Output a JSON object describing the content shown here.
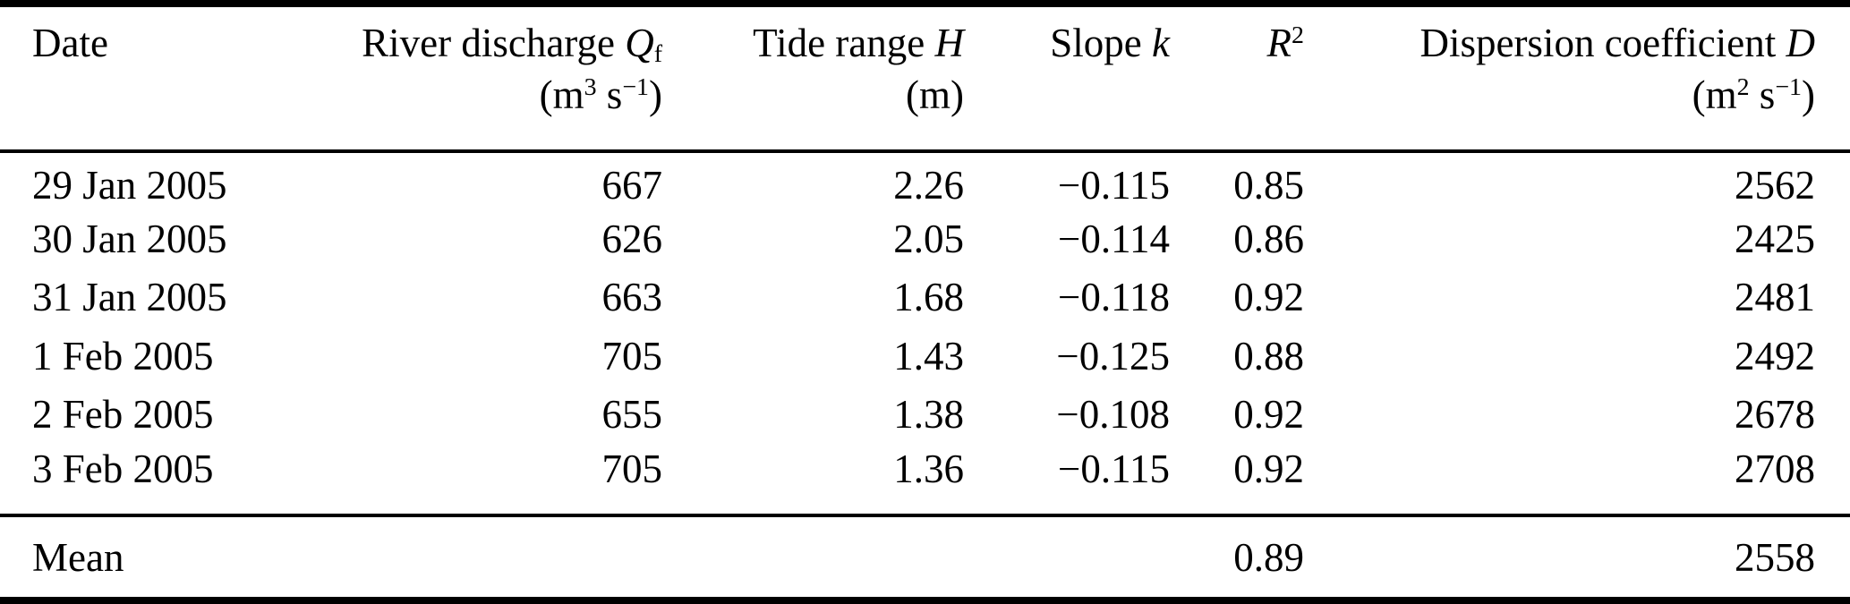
{
  "colors": {
    "text": "#000000",
    "background": "#ffffff",
    "rule": "#000000"
  },
  "table": {
    "columns": [
      {
        "id": "date",
        "align": "left",
        "label_runs": [
          {
            "t": "Date"
          }
        ],
        "unit_runs": []
      },
      {
        "id": "river_discharge",
        "align": "right",
        "label_runs": [
          {
            "t": "River discharge "
          },
          {
            "t": "Q",
            "s": "i"
          },
          {
            "t": "f",
            "s": "sub"
          }
        ],
        "unit_runs": [
          {
            "t": "(m"
          },
          {
            "t": "3",
            "s": "sup"
          },
          {
            "t": " s"
          },
          {
            "t": "−1",
            "s": "sup"
          },
          {
            "t": ")"
          }
        ]
      },
      {
        "id": "tide_range",
        "align": "right",
        "label_runs": [
          {
            "t": "Tide range "
          },
          {
            "t": "H",
            "s": "i"
          }
        ],
        "unit_runs": [
          {
            "t": "(m)"
          }
        ]
      },
      {
        "id": "slope",
        "align": "right",
        "label_runs": [
          {
            "t": "Slope "
          },
          {
            "t": "k",
            "s": "i"
          }
        ],
        "unit_runs": []
      },
      {
        "id": "r_squared",
        "align": "right",
        "label_runs": [
          {
            "t": "R",
            "s": "i"
          },
          {
            "t": "2",
            "s": "sup"
          }
        ],
        "unit_runs": []
      },
      {
        "id": "dispersion",
        "align": "right",
        "label_runs": [
          {
            "t": "Dispersion coefficient "
          },
          {
            "t": "D",
            "s": "i"
          }
        ],
        "unit_runs": [
          {
            "t": "(m"
          },
          {
            "t": "2",
            "s": "sup"
          },
          {
            "t": " s"
          },
          {
            "t": "−1",
            "s": "sup"
          },
          {
            "t": ")"
          }
        ]
      }
    ],
    "rows": [
      {
        "date": "29 Jan 2005",
        "river_discharge": "667",
        "tide_range": "2.26",
        "slope": "−0.115",
        "r_squared": "0.85",
        "dispersion": "2562"
      },
      {
        "date": "30 Jan 2005",
        "river_discharge": "626",
        "tide_range": "2.05",
        "slope": "−0.114",
        "r_squared": "0.86",
        "dispersion": "2425"
      },
      {
        "date": "31 Jan 2005",
        "river_discharge": "663",
        "tide_range": "1.68",
        "slope": "−0.118",
        "r_squared": "0.92",
        "dispersion": "2481"
      },
      {
        "date": "1 Feb 2005",
        "river_discharge": "705",
        "tide_range": "1.43",
        "slope": "−0.125",
        "r_squared": "0.88",
        "dispersion": "2492"
      },
      {
        "date": "2 Feb 2005",
        "river_discharge": "655",
        "tide_range": "1.38",
        "slope": "−0.108",
        "r_squared": "0.92",
        "dispersion": "2678"
      },
      {
        "date": "3 Feb 2005",
        "river_discharge": "705",
        "tide_range": "1.36",
        "slope": "−0.115",
        "r_squared": "0.92",
        "dispersion": "2708"
      }
    ],
    "summary_row": {
      "date": "Mean",
      "river_discharge": "",
      "tide_range": "",
      "slope": "",
      "r_squared": "0.89",
      "dispersion": "2558"
    }
  },
  "chart_data": {
    "type": "table",
    "title": "",
    "categories": [
      "29 Jan 2005",
      "30 Jan 2005",
      "31 Jan 2005",
      "1 Feb 2005",
      "2 Feb 2005",
      "3 Feb 2005"
    ],
    "series": [
      {
        "name": "River discharge Qf (m3 s-1)",
        "values": [
          667,
          626,
          663,
          705,
          655,
          705
        ]
      },
      {
        "name": "Tide range H (m)",
        "values": [
          2.26,
          2.05,
          1.68,
          1.43,
          1.38,
          1.36
        ]
      },
      {
        "name": "Slope k",
        "values": [
          -0.115,
          -0.114,
          -0.118,
          -0.125,
          -0.108,
          -0.115
        ]
      },
      {
        "name": "R2",
        "values": [
          0.85,
          0.86,
          0.92,
          0.88,
          0.92,
          0.92
        ]
      },
      {
        "name": "Dispersion coefficient D (m2 s-1)",
        "values": [
          2562,
          2425,
          2481,
          2492,
          2678,
          2708
        ]
      }
    ],
    "mean_row": {
      "R2": 0.89,
      "Dispersion coefficient D (m2 s-1)": 2558
    }
  }
}
